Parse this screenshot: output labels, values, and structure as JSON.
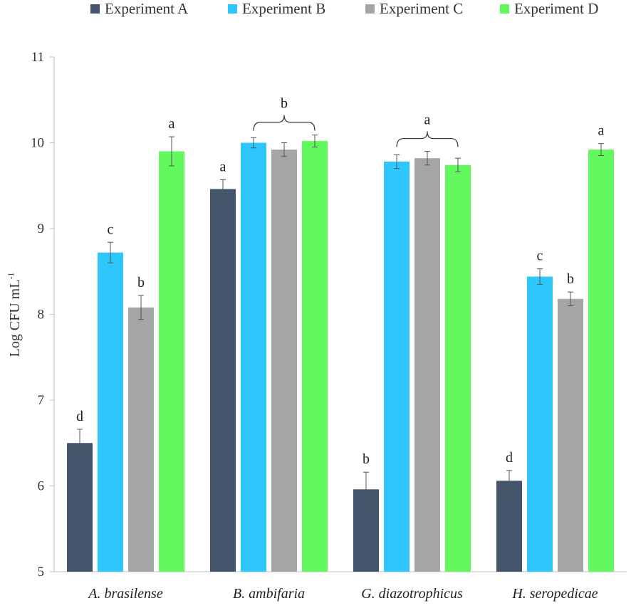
{
  "chart_data": {
    "type": "bar",
    "title": "",
    "xlabel": "",
    "ylabel": {
      "text": "Log CFU mL",
      "superscript": "-1"
    },
    "ylim": [
      5,
      11
    ],
    "yticks": [
      "5",
      "6",
      "7",
      "8",
      "9",
      "10",
      "11"
    ],
    "categories": [
      "A. brasilense",
      "B. ambifaria",
      "G. diazotrophicus",
      "H. seropedicae"
    ],
    "series": [
      {
        "name": "Experiment A",
        "color": "#44546a",
        "values": [
          6.5,
          9.46,
          5.96,
          6.06
        ],
        "errors": [
          0.16,
          0.11,
          0.2,
          0.12
        ]
      },
      {
        "name": "Experiment B",
        "color": "#2ec7fb",
        "values": [
          8.72,
          10.0,
          9.78,
          8.44
        ],
        "errors": [
          0.12,
          0.06,
          0.08,
          0.09
        ]
      },
      {
        "name": "Experiment C",
        "color": "#a5a5a5",
        "values": [
          8.08,
          9.92,
          9.82,
          8.18
        ],
        "errors": [
          0.14,
          0.08,
          0.08,
          0.08
        ]
      },
      {
        "name": "Experiment D",
        "color": "#62f85e",
        "values": [
          9.9,
          10.02,
          9.74,
          9.92
        ],
        "errors": [
          0.17,
          0.07,
          0.08,
          0.07
        ]
      }
    ],
    "letters": [
      {
        "category": 0,
        "series": 0,
        "text": "d"
      },
      {
        "category": 0,
        "series": 1,
        "text": "c"
      },
      {
        "category": 0,
        "series": 2,
        "text": "b"
      },
      {
        "category": 0,
        "series": 3,
        "text": "a"
      },
      {
        "category": 1,
        "series": 0,
        "text": "a"
      },
      {
        "category": 2,
        "series": 0,
        "text": "b"
      },
      {
        "category": 3,
        "series": 0,
        "text": "d"
      },
      {
        "category": 3,
        "series": 1,
        "text": "c"
      },
      {
        "category": 3,
        "series": 2,
        "text": "b"
      },
      {
        "category": 3,
        "series": 3,
        "text": "a"
      }
    ],
    "group_brackets": [
      {
        "category": 1,
        "from_series": 1,
        "to_series": 3,
        "text": "b"
      },
      {
        "category": 2,
        "from_series": 1,
        "to_series": 3,
        "text": "a"
      }
    ],
    "legend_position": "top"
  }
}
